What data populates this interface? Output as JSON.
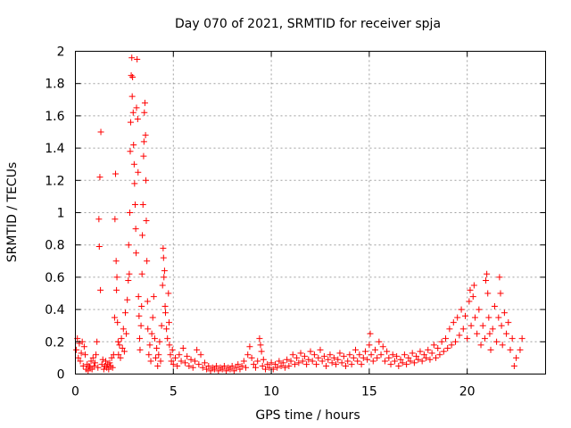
{
  "chart_data": {
    "type": "scatter",
    "title": "Day 070 of 2021, SRMTID for receiver spja",
    "xlabel": "GPS time / hours",
    "ylabel": "SRMTID / TECUs",
    "xlim": [
      0,
      24
    ],
    "ylim": [
      0,
      2
    ],
    "grid": true,
    "marker": "+",
    "color": "#ff0000",
    "x_ticks": [
      0,
      5,
      10,
      15,
      20
    ],
    "x_tick_labels": [
      "0",
      "5",
      "10",
      "15",
      "20"
    ],
    "y_ticks": [
      0,
      0.2,
      0.4,
      0.6,
      0.8,
      1,
      1.2,
      1.4,
      1.6,
      1.8,
      2
    ],
    "y_tick_labels": [
      "0",
      "0.2",
      "0.4",
      "0.6",
      "0.8",
      "1",
      "1.2",
      "1.4",
      "1.6",
      "1.8",
      "2"
    ],
    "series": [
      {
        "name": "SRMTID",
        "points": [
          [
            0.05,
            0.15
          ],
          [
            0.1,
            0.22
          ],
          [
            0.15,
            0.1
          ],
          [
            0.2,
            0.19
          ],
          [
            0.25,
            0.08
          ],
          [
            0.3,
            0.13
          ],
          [
            0.35,
            0.2
          ],
          [
            0.4,
            0.05
          ],
          [
            0.45,
            0.17
          ],
          [
            0.5,
            0.12
          ],
          [
            0.55,
            0.03
          ],
          [
            0.6,
            0.06
          ],
          [
            0.65,
            0.02
          ],
          [
            0.7,
            0.05
          ],
          [
            0.75,
            0.04
          ],
          [
            0.8,
            0.08
          ],
          [
            0.85,
            0.03
          ],
          [
            0.9,
            0.1
          ],
          [
            0.95,
            0.05
          ],
          [
            1.0,
            0.07
          ],
          [
            1.05,
            0.12
          ],
          [
            1.1,
            0.2
          ],
          [
            1.15,
            0.04
          ],
          [
            1.2,
            0.96
          ],
          [
            1.22,
            0.79
          ],
          [
            1.25,
            1.22
          ],
          [
            1.3,
            1.5
          ],
          [
            1.28,
            0.52
          ],
          [
            1.35,
            0.06
          ],
          [
            1.4,
            0.09
          ],
          [
            1.45,
            0.03
          ],
          [
            1.5,
            0.05
          ],
          [
            1.55,
            0.08
          ],
          [
            1.6,
            0.04
          ],
          [
            1.65,
            0.06
          ],
          [
            1.7,
            0.03
          ],
          [
            1.75,
            0.07
          ],
          [
            1.8,
            0.05
          ],
          [
            1.85,
            0.1
          ],
          [
            1.9,
            0.04
          ],
          [
            1.95,
            0.12
          ],
          [
            2.0,
            0.35
          ],
          [
            2.02,
            0.96
          ],
          [
            2.05,
            1.24
          ],
          [
            2.08,
            0.7
          ],
          [
            2.1,
            0.52
          ],
          [
            2.12,
            0.6
          ],
          [
            2.15,
            0.32
          ],
          [
            2.18,
            0.2
          ],
          [
            2.2,
            0.12
          ],
          [
            2.25,
            0.18
          ],
          [
            2.3,
            0.1
          ],
          [
            2.35,
            0.22
          ],
          [
            2.4,
            0.16
          ],
          [
            2.45,
            0.28
          ],
          [
            2.5,
            0.14
          ],
          [
            2.55,
            0.38
          ],
          [
            2.6,
            0.25
          ],
          [
            2.65,
            0.46
          ],
          [
            2.7,
            0.58
          ],
          [
            2.72,
            0.8
          ],
          [
            2.75,
            0.62
          ],
          [
            2.78,
            1.0
          ],
          [
            2.8,
            1.38
          ],
          [
            2.82,
            1.56
          ],
          [
            2.85,
            1.85
          ],
          [
            2.88,
            1.96
          ],
          [
            2.9,
            1.72
          ],
          [
            2.92,
            1.84
          ],
          [
            2.95,
            1.62
          ],
          [
            2.97,
            1.42
          ],
          [
            3.0,
            1.3
          ],
          [
            3.02,
            1.18
          ],
          [
            3.05,
            1.05
          ],
          [
            3.08,
            0.9
          ],
          [
            3.1,
            0.75
          ],
          [
            3.12,
            1.65
          ],
          [
            3.15,
            1.95
          ],
          [
            3.18,
            1.58
          ],
          [
            3.2,
            1.25
          ],
          [
            3.22,
            0.48
          ],
          [
            3.25,
            0.36
          ],
          [
            3.28,
            0.22
          ],
          [
            3.3,
            0.15
          ],
          [
            3.35,
            0.3
          ],
          [
            3.38,
            0.42
          ],
          [
            3.4,
            0.62
          ],
          [
            3.42,
            0.86
          ],
          [
            3.45,
            1.05
          ],
          [
            3.48,
            1.35
          ],
          [
            3.5,
            1.44
          ],
          [
            3.52,
            1.62
          ],
          [
            3.55,
            1.68
          ],
          [
            3.58,
            1.48
          ],
          [
            3.6,
            1.2
          ],
          [
            3.62,
            0.95
          ],
          [
            3.65,
            0.7
          ],
          [
            3.68,
            0.45
          ],
          [
            3.7,
            0.28
          ],
          [
            3.75,
            0.12
          ],
          [
            3.8,
            0.18
          ],
          [
            3.85,
            0.08
          ],
          [
            3.9,
            0.25
          ],
          [
            3.95,
            0.35
          ],
          [
            4.0,
            0.48
          ],
          [
            4.05,
            0.22
          ],
          [
            4.1,
            0.1
          ],
          [
            4.15,
            0.16
          ],
          [
            4.2,
            0.05
          ],
          [
            4.25,
            0.12
          ],
          [
            4.3,
            0.2
          ],
          [
            4.35,
            0.08
          ],
          [
            4.4,
            0.3
          ],
          [
            4.45,
            0.55
          ],
          [
            4.48,
            0.78
          ],
          [
            4.5,
            0.72
          ],
          [
            4.52,
            0.6
          ],
          [
            4.55,
            0.64
          ],
          [
            4.58,
            0.42
          ],
          [
            4.6,
            0.38
          ],
          [
            4.65,
            0.28
          ],
          [
            4.7,
            0.22
          ],
          [
            4.75,
            0.5
          ],
          [
            4.78,
            0.32
          ],
          [
            4.8,
            0.18
          ],
          [
            4.85,
            0.12
          ],
          [
            4.9,
            0.08
          ],
          [
            4.95,
            0.15
          ],
          [
            5.0,
            0.06
          ],
          [
            5.1,
            0.1
          ],
          [
            5.2,
            0.05
          ],
          [
            5.3,
            0.12
          ],
          [
            5.4,
            0.08
          ],
          [
            5.5,
            0.16
          ],
          [
            5.6,
            0.07
          ],
          [
            5.7,
            0.11
          ],
          [
            5.8,
            0.05
          ],
          [
            5.9,
            0.09
          ],
          [
            6.0,
            0.04
          ],
          [
            6.1,
            0.08
          ],
          [
            6.2,
            0.15
          ],
          [
            6.3,
            0.06
          ],
          [
            6.4,
            0.12
          ],
          [
            6.5,
            0.04
          ],
          [
            6.6,
            0.07
          ],
          [
            6.7,
            0.03
          ],
          [
            6.8,
            0.05
          ],
          [
            6.9,
            0.02
          ],
          [
            7.0,
            0.04
          ],
          [
            7.1,
            0.03
          ],
          [
            7.2,
            0.05
          ],
          [
            7.3,
            0.02
          ],
          [
            7.4,
            0.04
          ],
          [
            7.5,
            0.03
          ],
          [
            7.6,
            0.05
          ],
          [
            7.7,
            0.02
          ],
          [
            7.8,
            0.04
          ],
          [
            7.9,
            0.03
          ],
          [
            8.0,
            0.05
          ],
          [
            8.1,
            0.02
          ],
          [
            8.2,
            0.04
          ],
          [
            8.3,
            0.06
          ],
          [
            8.4,
            0.03
          ],
          [
            8.5,
            0.05
          ],
          [
            8.6,
            0.08
          ],
          [
            8.7,
            0.04
          ],
          [
            8.8,
            0.12
          ],
          [
            8.9,
            0.17
          ],
          [
            9.0,
            0.1
          ],
          [
            9.1,
            0.06
          ],
          [
            9.2,
            0.04
          ],
          [
            9.3,
            0.08
          ],
          [
            9.4,
            0.22
          ],
          [
            9.45,
            0.18
          ],
          [
            9.5,
            0.14
          ],
          [
            9.55,
            0.05
          ],
          [
            9.6,
            0.09
          ],
          [
            9.7,
            0.03
          ],
          [
            9.8,
            0.06
          ],
          [
            9.9,
            0.04
          ],
          [
            10.0,
            0.07
          ],
          [
            10.1,
            0.03
          ],
          [
            10.2,
            0.06
          ],
          [
            10.3,
            0.04
          ],
          [
            10.4,
            0.08
          ],
          [
            10.5,
            0.05
          ],
          [
            10.6,
            0.07
          ],
          [
            10.7,
            0.04
          ],
          [
            10.8,
            0.09
          ],
          [
            10.9,
            0.05
          ],
          [
            11.0,
            0.08
          ],
          [
            11.1,
            0.12
          ],
          [
            11.2,
            0.06
          ],
          [
            11.3,
            0.1
          ],
          [
            11.4,
            0.07
          ],
          [
            11.5,
            0.13
          ],
          [
            11.6,
            0.08
          ],
          [
            11.7,
            0.11
          ],
          [
            11.8,
            0.06
          ],
          [
            11.9,
            0.09
          ],
          [
            12.0,
            0.14
          ],
          [
            12.1,
            0.08
          ],
          [
            12.2,
            0.12
          ],
          [
            12.3,
            0.06
          ],
          [
            12.4,
            0.1
          ],
          [
            12.5,
            0.15
          ],
          [
            12.6,
            0.08
          ],
          [
            12.7,
            0.11
          ],
          [
            12.8,
            0.05
          ],
          [
            12.9,
            0.09
          ],
          [
            13.0,
            0.12
          ],
          [
            13.1,
            0.07
          ],
          [
            13.2,
            0.1
          ],
          [
            13.3,
            0.06
          ],
          [
            13.4,
            0.09
          ],
          [
            13.5,
            0.13
          ],
          [
            13.6,
            0.07
          ],
          [
            13.7,
            0.11
          ],
          [
            13.8,
            0.05
          ],
          [
            13.9,
            0.08
          ],
          [
            14.0,
            0.12
          ],
          [
            14.1,
            0.06
          ],
          [
            14.2,
            0.1
          ],
          [
            14.3,
            0.15
          ],
          [
            14.4,
            0.08
          ],
          [
            14.5,
            0.12
          ],
          [
            14.6,
            0.06
          ],
          [
            14.7,
            0.1
          ],
          [
            14.8,
            0.14
          ],
          [
            14.9,
            0.09
          ],
          [
            15.0,
            0.18
          ],
          [
            15.05,
            0.25
          ],
          [
            15.1,
            0.12
          ],
          [
            15.2,
            0.08
          ],
          [
            15.3,
            0.15
          ],
          [
            15.4,
            0.1
          ],
          [
            15.5,
            0.2
          ],
          [
            15.6,
            0.12
          ],
          [
            15.7,
            0.17
          ],
          [
            15.8,
            0.08
          ],
          [
            15.9,
            0.14
          ],
          [
            16.0,
            0.1
          ],
          [
            16.1,
            0.06
          ],
          [
            16.2,
            0.12
          ],
          [
            16.3,
            0.08
          ],
          [
            16.4,
            0.11
          ],
          [
            16.5,
            0.05
          ],
          [
            16.6,
            0.09
          ],
          [
            16.7,
            0.07
          ],
          [
            16.8,
            0.12
          ],
          [
            16.9,
            0.06
          ],
          [
            17.0,
            0.1
          ],
          [
            17.1,
            0.08
          ],
          [
            17.2,
            0.13
          ],
          [
            17.3,
            0.07
          ],
          [
            17.4,
            0.11
          ],
          [
            17.5,
            0.09
          ],
          [
            17.6,
            0.14
          ],
          [
            17.7,
            0.08
          ],
          [
            17.8,
            0.12
          ],
          [
            17.9,
            0.1
          ],
          [
            18.0,
            0.15
          ],
          [
            18.1,
            0.09
          ],
          [
            18.2,
            0.13
          ],
          [
            18.3,
            0.18
          ],
          [
            18.4,
            0.1
          ],
          [
            18.5,
            0.16
          ],
          [
            18.6,
            0.12
          ],
          [
            18.7,
            0.2
          ],
          [
            18.8,
            0.14
          ],
          [
            18.9,
            0.22
          ],
          [
            19.0,
            0.16
          ],
          [
            19.1,
            0.28
          ],
          [
            19.2,
            0.18
          ],
          [
            19.3,
            0.32
          ],
          [
            19.4,
            0.2
          ],
          [
            19.5,
            0.35
          ],
          [
            19.6,
            0.24
          ],
          [
            19.7,
            0.4
          ],
          [
            19.8,
            0.28
          ],
          [
            19.9,
            0.36
          ],
          [
            20.0,
            0.22
          ],
          [
            20.1,
            0.45
          ],
          [
            20.15,
            0.52
          ],
          [
            20.2,
            0.3
          ],
          [
            20.3,
            0.48
          ],
          [
            20.35,
            0.55
          ],
          [
            20.4,
            0.35
          ],
          [
            20.5,
            0.25
          ],
          [
            20.6,
            0.4
          ],
          [
            20.7,
            0.18
          ],
          [
            20.8,
            0.3
          ],
          [
            20.9,
            0.22
          ],
          [
            20.95,
            0.58
          ],
          [
            21.0,
            0.62
          ],
          [
            21.05,
            0.5
          ],
          [
            21.1,
            0.35
          ],
          [
            21.15,
            0.25
          ],
          [
            21.2,
            0.15
          ],
          [
            21.3,
            0.28
          ],
          [
            21.4,
            0.42
          ],
          [
            21.5,
            0.2
          ],
          [
            21.6,
            0.35
          ],
          [
            21.65,
            0.6
          ],
          [
            21.7,
            0.5
          ],
          [
            21.75,
            0.3
          ],
          [
            21.8,
            0.18
          ],
          [
            21.9,
            0.38
          ],
          [
            22.0,
            0.25
          ],
          [
            22.1,
            0.32
          ],
          [
            22.2,
            0.15
          ],
          [
            22.3,
            0.22
          ],
          [
            22.4,
            0.05
          ],
          [
            22.5,
            0.1
          ],
          [
            22.7,
            0.15
          ],
          [
            22.8,
            0.22
          ]
        ]
      }
    ]
  }
}
